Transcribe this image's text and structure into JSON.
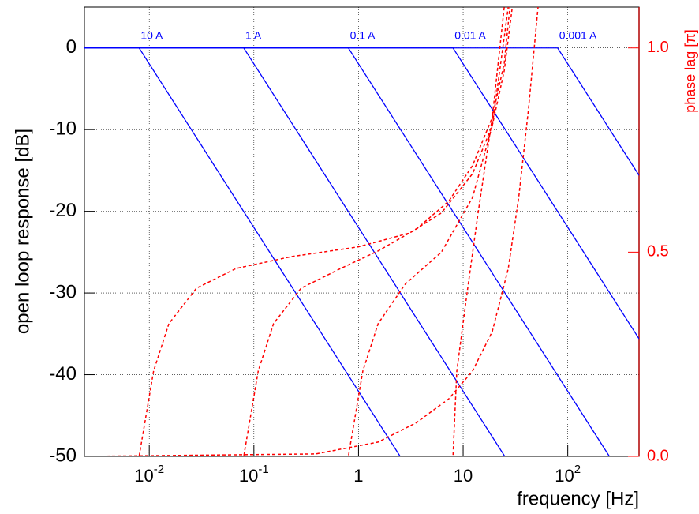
{
  "chart_data": {
    "type": "line",
    "xlabel": "frequency [Hz]",
    "ylabel": "open loop response [dB]",
    "y2label": "phase lag [π]",
    "xlog": true,
    "grid": true,
    "xlim": [
      0.0024,
      480
    ],
    "ylim": [
      -50,
      5
    ],
    "y2lim": [
      0,
      1.1
    ],
    "xticks": [
      {
        "value": 0.01,
        "label": "10",
        "superscript": "-2"
      },
      {
        "value": 0.1,
        "label": "10",
        "superscript": "-1"
      },
      1,
      10,
      {
        "value": 100,
        "label": "10",
        "superscript": "2"
      }
    ],
    "yticks": [
      0,
      -10,
      -20,
      -30,
      -40,
      -50
    ],
    "y2ticks": [
      {
        "value": 0,
        "label": "0.0"
      },
      0.5,
      {
        "value": 1,
        "label": "1.0"
      }
    ],
    "series": [
      {
        "name": "10 A",
        "color": "#0000ff",
        "x": [
          0.0024,
          0.008,
          2.5
        ],
        "values": [
          0,
          0,
          -50
        ]
      },
      {
        "name": "1 A",
        "color": "#0000ff",
        "x": [
          0.0024,
          0.08,
          25
        ],
        "values": [
          0,
          0,
          -50
        ]
      },
      {
        "name": "0.1 A",
        "color": "#0000ff",
        "x": [
          0.0024,
          0.8,
          250
        ],
        "values": [
          0,
          0,
          -50
        ]
      },
      {
        "name": "0.01 A",
        "color": "#0000ff",
        "x": [
          0.0024,
          8,
          480
        ],
        "values": [
          0,
          0,
          -35.6
        ]
      },
      {
        "name": "0.001 A",
        "color": "#0000ff",
        "x": [
          0.0024,
          80,
          480
        ],
        "values": [
          0,
          0,
          -15.6
        ]
      },
      {
        "color": "#ff0000",
        "axis": "y2",
        "dashed": true,
        "x": [
          0.0024,
          0.008,
          0.011,
          0.0154,
          0.0283,
          0.0675,
          0.228,
          1,
          3.09,
          6.2,
          12.3,
          19,
          24.7,
          29.5
        ],
        "values": [
          0,
          0,
          0.209,
          0.325,
          0.412,
          0.46,
          0.489,
          0.513,
          0.547,
          0.596,
          0.692,
          0.81,
          0.944,
          1.1
        ]
      },
      {
        "color": "#ff0000",
        "axis": "y2",
        "dashed": true,
        "x": [
          0.0024,
          0.08,
          0.11,
          0.154,
          0.283,
          0.675,
          1.54,
          3.6,
          7.3,
          12.3,
          19,
          24.7,
          28
        ],
        "values": [
          0,
          0,
          0.209,
          0.325,
          0.412,
          0.46,
          0.503,
          0.557,
          0.625,
          0.712,
          0.83,
          0.963,
          1.1
        ]
      },
      {
        "color": "#ff0000",
        "axis": "y2",
        "dashed": true,
        "x": [
          0.0024,
          0.8,
          1.1,
          1.54,
          2.8,
          6.2,
          12.3,
          19,
          27
        ],
        "values": [
          0,
          0,
          0.209,
          0.325,
          0.422,
          0.5,
          0.634,
          0.81,
          1.1
        ]
      },
      {
        "color": "#ff0000",
        "axis": "y2",
        "dashed": true,
        "x": [
          0.0024,
          8,
          8.7,
          10.9,
          13.9,
          19,
          24.7
        ],
        "values": [
          0,
          0,
          0.209,
          0.4,
          0.596,
          0.83,
          1.1
        ]
      },
      {
        "color": "#ff0000",
        "axis": "y2",
        "dashed": true,
        "x": [
          0.0024,
          0.39,
          1.54,
          3.6,
          7.3,
          12.3,
          19,
          27,
          34,
          42,
          52
        ],
        "values": [
          0,
          0.006,
          0.035,
          0.083,
          0.141,
          0.209,
          0.306,
          0.46,
          0.634,
          0.847,
          1.1
        ]
      }
    ]
  }
}
